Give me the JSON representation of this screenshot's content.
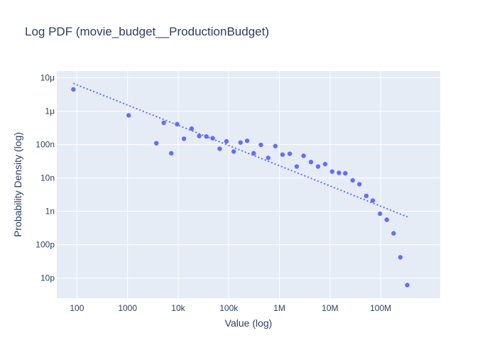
{
  "chart_data": {
    "type": "scatter",
    "title": "Log PDF (movie_budget__ProductionBudget)",
    "xlabel": "Value (log)",
    "ylabel": "Probability Density (log)",
    "x_scale": "log",
    "y_scale": "log",
    "xlim": [
      40,
      1500000000
    ],
    "ylim": [
      2.5e-12,
      1.6e-05
    ],
    "x_ticks": [
      {
        "value": 100,
        "label": "100"
      },
      {
        "value": 1000,
        "label": "1000"
      },
      {
        "value": 10000,
        "label": "10k"
      },
      {
        "value": 100000,
        "label": "100k"
      },
      {
        "value": 1000000,
        "label": "1M"
      },
      {
        "value": 10000000,
        "label": "10M"
      },
      {
        "value": 100000000,
        "label": "100M"
      }
    ],
    "y_ticks": [
      {
        "value": 1e-11,
        "label": "10p"
      },
      {
        "value": 1e-10,
        "label": "100p"
      },
      {
        "value": 1e-09,
        "label": "1n"
      },
      {
        "value": 1e-08,
        "label": "10n"
      },
      {
        "value": 1e-07,
        "label": "100n"
      },
      {
        "value": 1e-06,
        "label": "1μ"
      },
      {
        "value": 1e-05,
        "label": "10μ"
      }
    ],
    "grid": true,
    "colors": {
      "marker": "#636efa",
      "fit_line": "#636efa",
      "plot_bg": "#e5ecf6",
      "grid": "#ffffff",
      "text": "#2a3f5f"
    },
    "series": [
      {
        "mode": "markers",
        "points": [
          {
            "x": 85,
            "y": 4.5e-06
          },
          {
            "x": 1050,
            "y": 7.5e-07
          },
          {
            "x": 3700,
            "y": 1.1e-07
          },
          {
            "x": 5200,
            "y": 4.5e-07
          },
          {
            "x": 7300,
            "y": 5.5e-08
          },
          {
            "x": 9500,
            "y": 4.1e-07
          },
          {
            "x": 13000,
            "y": 1.5e-07
          },
          {
            "x": 18500,
            "y": 3e-07
          },
          {
            "x": 26000,
            "y": 1.8e-07
          },
          {
            "x": 36000,
            "y": 1.75e-07
          },
          {
            "x": 48000,
            "y": 1.55e-07
          },
          {
            "x": 66000,
            "y": 7.5e-08
          },
          {
            "x": 90000,
            "y": 1.25e-07
          },
          {
            "x": 125000,
            "y": 6.2e-08
          },
          {
            "x": 170000,
            "y": 1.15e-07
          },
          {
            "x": 230000,
            "y": 1.3e-07
          },
          {
            "x": 310000,
            "y": 5.5e-08
          },
          {
            "x": 430000,
            "y": 9.8e-08
          },
          {
            "x": 600000,
            "y": 4e-08
          },
          {
            "x": 830000,
            "y": 9e-08
          },
          {
            "x": 1150000,
            "y": 5e-08
          },
          {
            "x": 1600000,
            "y": 5.3e-08
          },
          {
            "x": 2200000,
            "y": 2.2e-08
          },
          {
            "x": 3000000,
            "y": 4.6e-08
          },
          {
            "x": 4200000,
            "y": 3e-08
          },
          {
            "x": 5800000,
            "y": 2.2e-08
          },
          {
            "x": 8000000,
            "y": 2.6e-08
          },
          {
            "x": 11000000,
            "y": 1.55e-08
          },
          {
            "x": 15000000,
            "y": 1.42e-08
          },
          {
            "x": 20000000,
            "y": 1.38e-08
          },
          {
            "x": 28000000,
            "y": 8.5e-09
          },
          {
            "x": 38000000,
            "y": 6.5e-09
          },
          {
            "x": 52000000,
            "y": 2.9e-09
          },
          {
            "x": 70000000,
            "y": 2.1e-09
          },
          {
            "x": 97000000,
            "y": 8.5e-10
          },
          {
            "x": 132000000,
            "y": 5.6e-10
          },
          {
            "x": 180000000,
            "y": 2.2e-10
          },
          {
            "x": 245000000,
            "y": 4.2e-11
          },
          {
            "x": 335000000,
            "y": 6.2e-12
          }
        ]
      },
      {
        "mode": "dotted-line",
        "points": [
          {
            "x": 85,
            "y": 6.8e-06
          },
          {
            "x": 340000000,
            "y": 6.8e-10
          }
        ]
      }
    ]
  }
}
